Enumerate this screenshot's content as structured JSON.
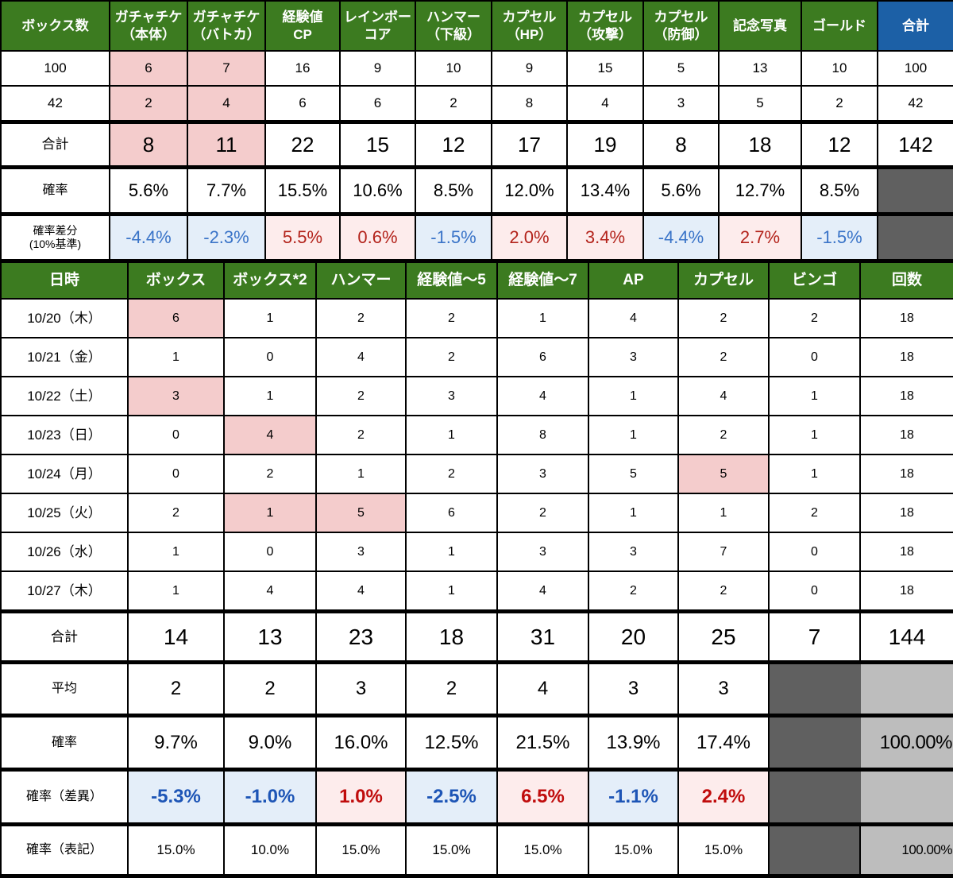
{
  "colors": {
    "header_green": "#3c7b20",
    "header_blue": "#1c60a6",
    "highlight_pink": "#f4cccc",
    "neg_bg": "#e4eef9",
    "pos_bg": "#fdecec",
    "neg_text": "#3a74c8",
    "pos_text": "#b3231b",
    "neg_text_bold": "#1d55b6",
    "pos_text_bold": "#c00c0c",
    "dark_gray": "#606060",
    "light_gray": "#bdbdbd",
    "border": "#000000"
  },
  "table1": {
    "headers": [
      {
        "label": "ボックス数"
      },
      {
        "label": "ガチャチケ\n（本体）"
      },
      {
        "label": "ガチャチケ\n（バトカ）"
      },
      {
        "label": "経験値\nCP"
      },
      {
        "label": "レインボー\nコア"
      },
      {
        "label": "ハンマー\n（下級）"
      },
      {
        "label": "カプセル\n（HP）"
      },
      {
        "label": "カプセル\n（攻撃）"
      },
      {
        "label": "カプセル\n（防御）"
      },
      {
        "label": "記念写真"
      },
      {
        "label": "ゴールド"
      },
      {
        "label": "合計",
        "s": "blue-h"
      }
    ],
    "rows": [
      {
        "label": "100",
        "cls": "r-data",
        "cells": [
          {
            "v": "6",
            "s": "pink"
          },
          {
            "v": "7",
            "s": "pink"
          },
          "16",
          "9",
          "10",
          "9",
          "15",
          "5",
          "13",
          "10",
          "100"
        ]
      },
      {
        "label": "42",
        "cls": "r-data",
        "cells": [
          {
            "v": "2",
            "s": "pink"
          },
          {
            "v": "4",
            "s": "pink"
          },
          "6",
          "6",
          "2",
          "8",
          "4",
          "3",
          "5",
          "2",
          "42"
        ]
      },
      {
        "label": "合計",
        "cls": "r-total thick",
        "cells": [
          {
            "v": "8",
            "s": "pink"
          },
          {
            "v": "11",
            "s": "pink"
          },
          "22",
          "15",
          "12",
          "17",
          "19",
          "8",
          "18",
          "12",
          "142"
        ]
      },
      {
        "label": "確率",
        "cls": "r-rate thick",
        "cells": [
          "5.6%",
          "7.7%",
          "15.5%",
          "10.6%",
          "8.5%",
          "12.0%",
          "13.4%",
          "5.6%",
          "12.7%",
          "8.5%",
          {
            "v": "",
            "s": "dark"
          }
        ]
      },
      {
        "label": "確率差分\n(10%基準)",
        "cls": "r-diff thick last",
        "cells": [
          {
            "v": "-4.4%",
            "s": "cblue"
          },
          {
            "v": "-2.3%",
            "s": "cblue"
          },
          {
            "v": "5.5%",
            "s": "cred"
          },
          {
            "v": "0.6%",
            "s": "cred"
          },
          {
            "v": "-1.5%",
            "s": "cblue"
          },
          {
            "v": "2.0%",
            "s": "cred"
          },
          {
            "v": "3.4%",
            "s": "cred"
          },
          {
            "v": "-4.4%",
            "s": "cblue"
          },
          {
            "v": "2.7%",
            "s": "cred"
          },
          {
            "v": "-1.5%",
            "s": "cblue"
          },
          {
            "v": "",
            "s": "dark"
          }
        ]
      }
    ]
  },
  "table2": {
    "headers": [
      {
        "label": "日時"
      },
      {
        "label": "ボックス"
      },
      {
        "label": "ボックス*2"
      },
      {
        "label": "ハンマー"
      },
      {
        "label": "経験値〜5"
      },
      {
        "label": "経験値〜7"
      },
      {
        "label": "AP"
      },
      {
        "label": "カプセル"
      },
      {
        "label": "ビンゴ"
      },
      {
        "label": "回数"
      }
    ],
    "rows": [
      {
        "label": "10/20（木）",
        "cls": "r-day",
        "cells": [
          {
            "v": "6",
            "s": "pink"
          },
          "1",
          "2",
          "2",
          "1",
          "4",
          "2",
          "2",
          "18"
        ]
      },
      {
        "label": "10/21（金）",
        "cls": "r-day",
        "cells": [
          "1",
          "0",
          "4",
          "2",
          "6",
          "3",
          "2",
          "0",
          "18"
        ]
      },
      {
        "label": "10/22（土）",
        "cls": "r-day",
        "cells": [
          {
            "v": "3",
            "s": "pink"
          },
          "1",
          "2",
          "3",
          "4",
          "1",
          "4",
          "1",
          "18"
        ]
      },
      {
        "label": "10/23（日）",
        "cls": "r-day",
        "cells": [
          "0",
          {
            "v": "4",
            "s": "pink"
          },
          "2",
          "1",
          "8",
          "1",
          "2",
          "1",
          "18"
        ]
      },
      {
        "label": "10/24（月）",
        "cls": "r-day",
        "cells": [
          "0",
          "2",
          "1",
          "2",
          "3",
          "5",
          {
            "v": "5",
            "s": "pink"
          },
          "1",
          "18"
        ]
      },
      {
        "label": "10/25（火）",
        "cls": "r-day",
        "cells": [
          "2",
          {
            "v": "1",
            "s": "pink"
          },
          {
            "v": "5",
            "s": "pink"
          },
          "6",
          "2",
          "1",
          "1",
          "2",
          "18"
        ]
      },
      {
        "label": "10/26（水）",
        "cls": "r-day",
        "cells": [
          "1",
          "0",
          "3",
          "1",
          "3",
          "3",
          "7",
          "0",
          "18"
        ]
      },
      {
        "label": "10/27（木）",
        "cls": "r-day",
        "cells": [
          "1",
          "4",
          "4",
          "1",
          "4",
          "2",
          "2",
          "0",
          "18"
        ]
      },
      {
        "label": "合計",
        "cls": "r-sum thick",
        "cells": [
          "14",
          "13",
          "23",
          "18",
          "31",
          "20",
          "25",
          "7",
          "144"
        ]
      },
      {
        "label": "平均",
        "cls": "r-avg thick gray-merge",
        "cells": [
          "2",
          "2",
          "3",
          "2",
          "4",
          "3",
          "3",
          {
            "v": "",
            "s": "dark"
          },
          {
            "v": "",
            "s": "light"
          }
        ]
      },
      {
        "label": "確率",
        "cls": "r-prob thick gray-merge",
        "cells": [
          "9.7%",
          "9.0%",
          "16.0%",
          "12.5%",
          "21.5%",
          "13.9%",
          "17.4%",
          {
            "v": "",
            "s": "dark"
          },
          {
            "v": "100.00%",
            "s": "light pct"
          }
        ]
      },
      {
        "label": "確率（差異）",
        "cls": "r-diff2 thick gray-merge",
        "cells": [
          {
            "v": "-5.3%",
            "s": "cblue"
          },
          {
            "v": "-1.0%",
            "s": "cblue"
          },
          {
            "v": "1.0%",
            "s": "cred"
          },
          {
            "v": "-2.5%",
            "s": "cblue"
          },
          {
            "v": "6.5%",
            "s": "cred"
          },
          {
            "v": "-1.1%",
            "s": "cblue"
          },
          {
            "v": "2.4%",
            "s": "cred"
          },
          {
            "v": "",
            "s": "dark"
          },
          {
            "v": "",
            "s": "light"
          }
        ]
      },
      {
        "label": "確率（表記）",
        "cls": "r-note thick last",
        "cells": [
          "15.0%",
          "10.0%",
          "15.0%",
          "15.0%",
          "15.0%",
          "15.0%",
          "15.0%",
          {
            "v": "",
            "s": "dark"
          },
          {
            "v": "100.00%",
            "s": "light pct"
          }
        ]
      }
    ]
  }
}
